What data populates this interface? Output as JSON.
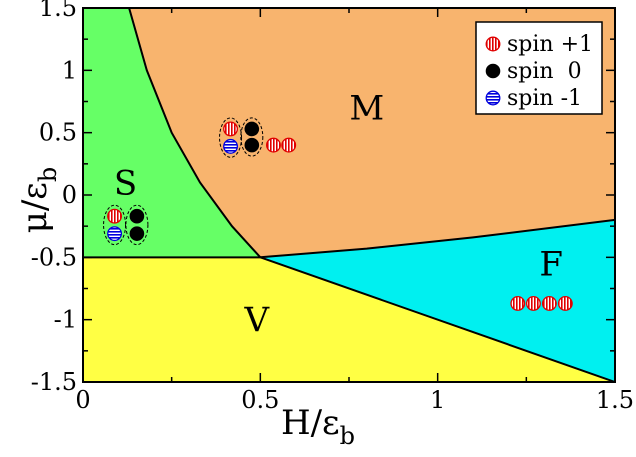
{
  "chart_data": {
    "type": "phase-diagram",
    "xlabel": {
      "main": "H/ε",
      "sub": "b"
    },
    "ylabel": {
      "main": "μ/ε",
      "sub": "b"
    },
    "xlim": [
      0,
      1.5
    ],
    "ylim": [
      -1.5,
      1.5
    ],
    "x_ticks": [
      {
        "value": 0,
        "label": "0"
      },
      {
        "value": 0.5,
        "label": "0.5"
      },
      {
        "value": 1,
        "label": "1"
      },
      {
        "value": 1.5,
        "label": "1.5"
      }
    ],
    "y_ticks": [
      {
        "value": 1.5,
        "label": "1.5"
      },
      {
        "value": 1,
        "label": "1"
      },
      {
        "value": 0.5,
        "label": "0.5"
      },
      {
        "value": 0,
        "label": "0"
      },
      {
        "value": -0.5,
        "label": "-0.5"
      },
      {
        "value": -1,
        "label": "-1"
      },
      {
        "value": -1.5,
        "label": "-1.5"
      }
    ],
    "regions": [
      {
        "label": "S",
        "color": "#66ff66",
        "label_pos": [
          0.12,
          0.1
        ]
      },
      {
        "label": "M",
        "color": "#f8b46e",
        "label_pos": [
          0.8,
          0.7
        ]
      },
      {
        "label": "F",
        "color": "#00f0f0",
        "label_pos": [
          1.32,
          -0.55
        ]
      },
      {
        "label": "V",
        "color": "#ffff44",
        "label_pos": [
          0.49,
          -1.0
        ]
      }
    ],
    "boundaries": {
      "vacuum_line_mu": -0.5,
      "triple_point": [
        0.5,
        -0.5
      ],
      "s_m_curve": [
        [
          0.13,
          1.5
        ],
        [
          0.18,
          1.0
        ],
        [
          0.25,
          0.5
        ],
        [
          0.33,
          0.1
        ],
        [
          0.42,
          -0.25
        ],
        [
          0.5,
          -0.5
        ]
      ],
      "m_f_curve": [
        [
          0.5,
          -0.5
        ],
        [
          0.8,
          -0.43
        ],
        [
          1.1,
          -0.34
        ],
        [
          1.5,
          -0.2
        ]
      ],
      "f_v_line": [
        [
          0.5,
          -0.5
        ],
        [
          1.5,
          -1.5
        ]
      ]
    },
    "legend": {
      "position": "top-right",
      "entries": [
        {
          "label": "spin +1",
          "marker": "red-vertical-stripes"
        },
        {
          "label": "spin  0",
          "marker": "black-filled"
        },
        {
          "label": "spin -1",
          "marker": "blue-horizontal-stripes"
        }
      ]
    },
    "particles": [
      {
        "spin": 1,
        "x": 0.089,
        "y": -0.17
      },
      {
        "spin": -1,
        "x": 0.089,
        "y": -0.31
      },
      {
        "spin": 0,
        "x": 0.152,
        "y": -0.17
      },
      {
        "spin": 0,
        "x": 0.152,
        "y": -0.31
      },
      {
        "spin": 1,
        "x": 0.416,
        "y": 0.53
      },
      {
        "spin": -1,
        "x": 0.416,
        "y": 0.39
      },
      {
        "spin": 0,
        "x": 0.476,
        "y": 0.53
      },
      {
        "spin": 0,
        "x": 0.476,
        "y": 0.4
      },
      {
        "spin": 1,
        "x": 0.537,
        "y": 0.4
      },
      {
        "spin": 1,
        "x": 0.58,
        "y": 0.4
      },
      {
        "spin": 1,
        "x": 1.226,
        "y": -0.87
      },
      {
        "spin": 1,
        "x": 1.27,
        "y": -0.87
      },
      {
        "spin": 1,
        "x": 1.315,
        "y": -0.87
      },
      {
        "spin": 1,
        "x": 1.36,
        "y": -0.87
      }
    ],
    "pair_groups": [
      {
        "x": 0.089,
        "y_top": -0.17,
        "y_bottom": -0.31
      },
      {
        "x": 0.152,
        "y_top": -0.17,
        "y_bottom": -0.31
      },
      {
        "x": 0.416,
        "y_top": 0.53,
        "y_bottom": 0.39
      },
      {
        "x": 0.476,
        "y_top": 0.53,
        "y_bottom": 0.4
      }
    ]
  }
}
